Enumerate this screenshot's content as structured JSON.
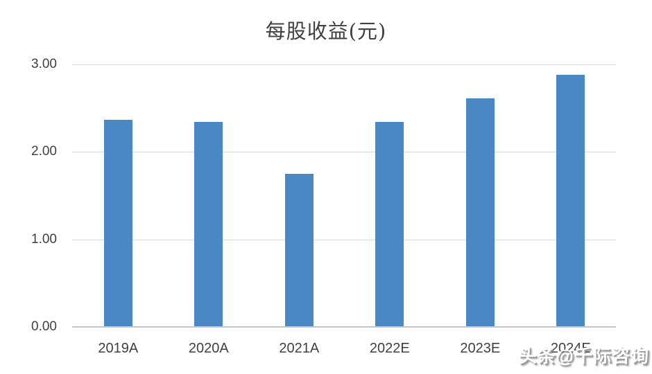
{
  "title": "每股收益(元)",
  "watermark": "头条@千际咨询",
  "colors": {
    "bar": "#4a87c5",
    "gridline": "#d9d9d9",
    "axis_line": "#c6c6c6",
    "text": "#404040",
    "background": "#ffffff"
  },
  "chart_data": {
    "type": "bar",
    "title": "每股收益(元)",
    "categories": [
      "2019A",
      "2020A",
      "2021A",
      "2022E",
      "2023E",
      "2024E"
    ],
    "values": [
      2.37,
      2.34,
      1.75,
      2.34,
      2.61,
      2.88
    ],
    "xlabel": "",
    "ylabel": "",
    "ylim": [
      0,
      3
    ],
    "yticks": [
      0,
      1,
      2,
      3
    ],
    "ytick_labels": [
      "0.00",
      "1.00",
      "2.00",
      "3.00"
    ],
    "grid": true,
    "legend_position": "none",
    "series_color": "#4a87c5"
  }
}
